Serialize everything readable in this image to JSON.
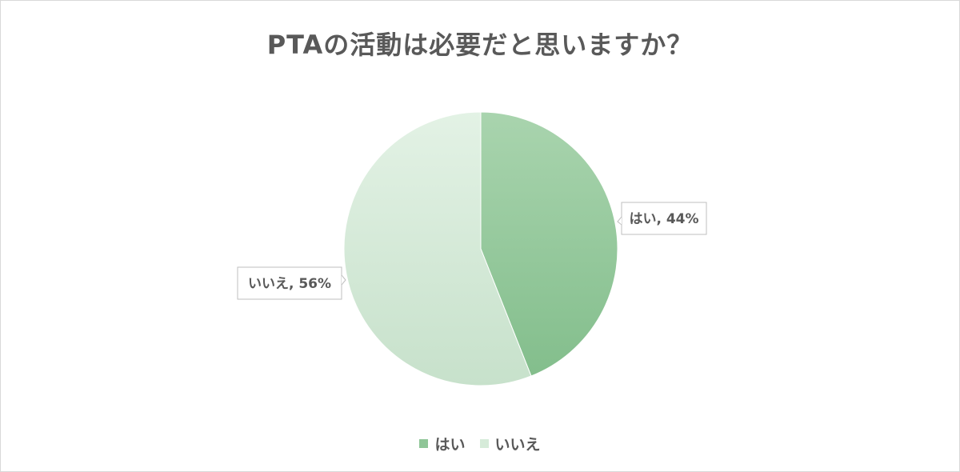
{
  "chart_data": {
    "type": "pie",
    "title": "PTAの活動は必要だと思いますか？",
    "categories": [
      "はい",
      "いいえ"
    ],
    "values": [
      44,
      56
    ],
    "unit": "%",
    "data_labels": [
      "はい, 44%",
      "いいえ, 56%"
    ],
    "colors": [
      "#93c79b",
      "#d6ebd9"
    ],
    "legend": {
      "placement": "bottom",
      "entries": [
        "はい",
        "いいえ"
      ]
    }
  }
}
